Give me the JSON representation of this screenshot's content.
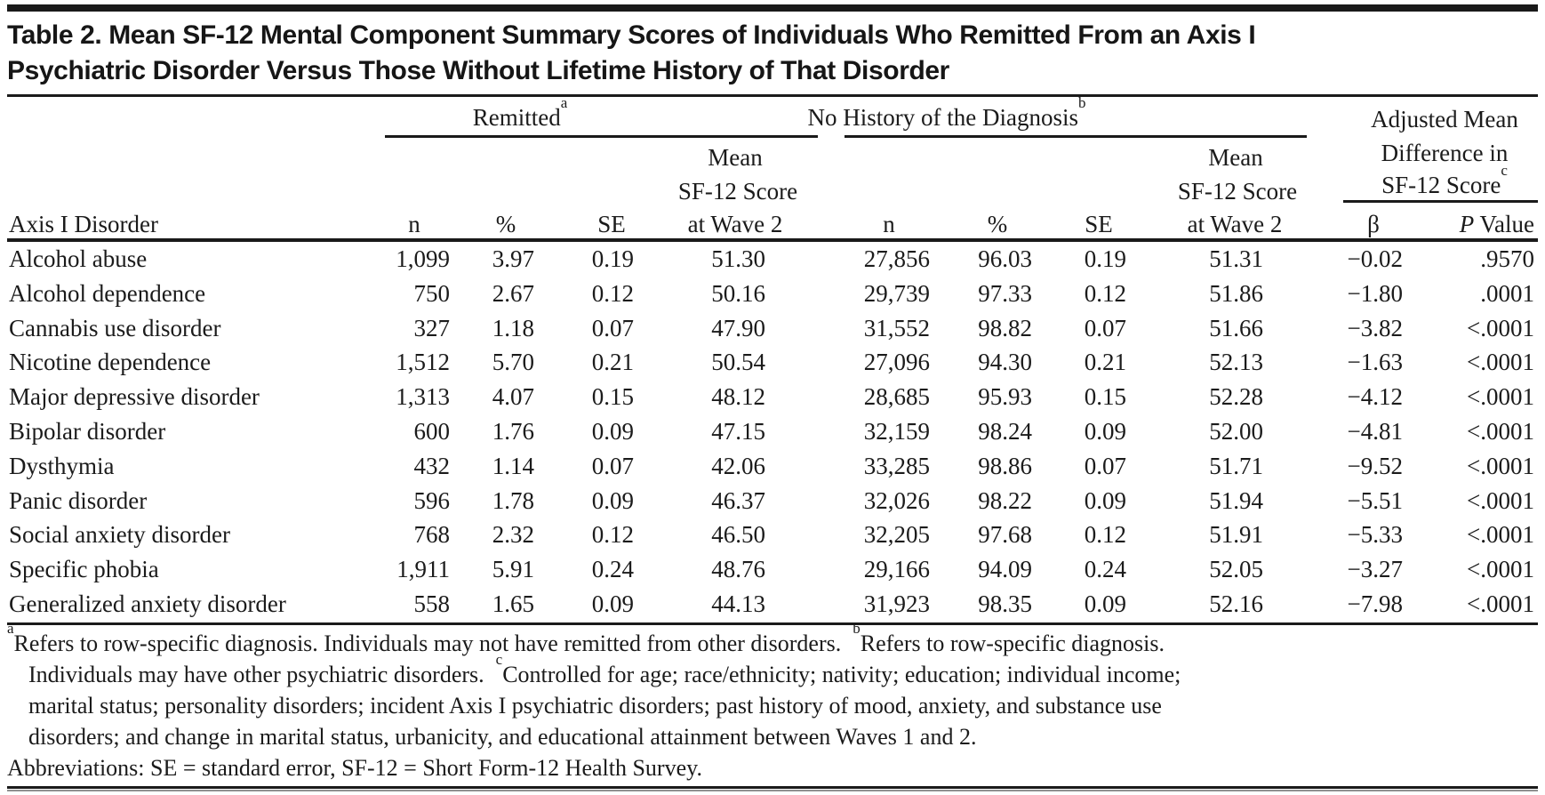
{
  "title": {
    "line1": "Table 2. Mean SF-12 Mental Component Summary Scores of Individuals Who Remitted From an Axis I",
    "line2": "Psychiatric Disorder Versus Those Without Lifetime History of That Disorder"
  },
  "header": {
    "axis_col": "Axis I Disorder",
    "groups": [
      {
        "label": "Remitted",
        "sup": "a"
      },
      {
        "label": "No History of the Diagnosis",
        "sup": "b"
      }
    ],
    "adjusted": {
      "line1": "Adjusted Mean",
      "line2": "Difference in",
      "line3": "SF-12 Score",
      "sup": "c"
    },
    "sub": {
      "n": "n",
      "pct": "%",
      "se": "SE",
      "mean_l1": "Mean",
      "mean_l2": "SF-12 Score",
      "mean_l3": "at Wave 2",
      "beta": "β",
      "p_italic": "P",
      "p_rest": " Value"
    }
  },
  "table": {
    "columns": [
      "Axis I Disorder",
      "Remitted n",
      "Remitted %",
      "Remitted SE",
      "Remitted Mean SF-12 Score at Wave 2",
      "No History n",
      "No History %",
      "No History SE",
      "No History Mean SF-12 Score at Wave 2",
      "β",
      "P Value"
    ],
    "rows": [
      [
        "Alcohol abuse",
        "1,099",
        "3.97",
        "0.19",
        "51.30",
        "27,856",
        "96.03",
        "0.19",
        "51.31",
        "−0.02",
        ".9570"
      ],
      [
        "Alcohol dependence",
        "750",
        "2.67",
        "0.12",
        "50.16",
        "29,739",
        "97.33",
        "0.12",
        "51.86",
        "−1.80",
        ".0001"
      ],
      [
        "Cannabis use disorder",
        "327",
        "1.18",
        "0.07",
        "47.90",
        "31,552",
        "98.82",
        "0.07",
        "51.66",
        "−3.82",
        "<.0001"
      ],
      [
        "Nicotine dependence",
        "1,512",
        "5.70",
        "0.21",
        "50.54",
        "27,096",
        "94.30",
        "0.21",
        "52.13",
        "−1.63",
        "<.0001"
      ],
      [
        "Major depressive disorder",
        "1,313",
        "4.07",
        "0.15",
        "48.12",
        "28,685",
        "95.93",
        "0.15",
        "52.28",
        "−4.12",
        "<.0001"
      ],
      [
        "Bipolar disorder",
        "600",
        "1.76",
        "0.09",
        "47.15",
        "32,159",
        "98.24",
        "0.09",
        "52.00",
        "−4.81",
        "<.0001"
      ],
      [
        "Dysthymia",
        "432",
        "1.14",
        "0.07",
        "42.06",
        "33,285",
        "98.86",
        "0.07",
        "51.71",
        "−9.52",
        "<.0001"
      ],
      [
        "Panic disorder",
        "596",
        "1.78",
        "0.09",
        "46.37",
        "32,026",
        "98.22",
        "0.09",
        "51.94",
        "−5.51",
        "<.0001"
      ],
      [
        "Social anxiety disorder",
        "768",
        "2.32",
        "0.12",
        "46.50",
        "32,205",
        "97.68",
        "0.12",
        "51.91",
        "−5.33",
        "<.0001"
      ],
      [
        "Specific phobia",
        "1,911",
        "5.91",
        "0.24",
        "48.76",
        "29,166",
        "94.09",
        "0.24",
        "52.05",
        "−3.27",
        "<.0001"
      ],
      [
        "Generalized anxiety disorder",
        "558",
        "1.65",
        "0.09",
        "44.13",
        "31,923",
        "98.35",
        "0.09",
        "52.16",
        "−7.98",
        "<.0001"
      ]
    ]
  },
  "footnotes": {
    "lines": [
      {
        "indent": false,
        "segments": [
          {
            "sup": "a"
          },
          {
            "text": "Refers to row-specific diagnosis. Individuals may not have remitted from other disorders.  "
          },
          {
            "sup": "b"
          },
          {
            "text": "Refers to row-specific diagnosis."
          }
        ]
      },
      {
        "indent": true,
        "segments": [
          {
            "text": "Individuals may have other psychiatric disorders.  "
          },
          {
            "sup": "c"
          },
          {
            "text": "Controlled for age; race/ethnicity; nativity; education; individual income;"
          }
        ]
      },
      {
        "indent": true,
        "segments": [
          {
            "text": "marital status; personality disorders; incident Axis I psychiatric disorders; past history of mood, anxiety, and substance use"
          }
        ]
      },
      {
        "indent": true,
        "segments": [
          {
            "text": "disorders; and change in marital status, urbanicity, and educational attainment between Waves 1 and 2."
          }
        ]
      },
      {
        "indent": false,
        "segments": [
          {
            "text": "Abbreviations: SE = standard error, SF-12 = Short Form-12 Health Survey."
          }
        ]
      }
    ]
  },
  "colors": {
    "ink": "#1b1b1b",
    "rule": "#1a1a1a",
    "shadow": "#909090",
    "background": "#ffffff"
  }
}
